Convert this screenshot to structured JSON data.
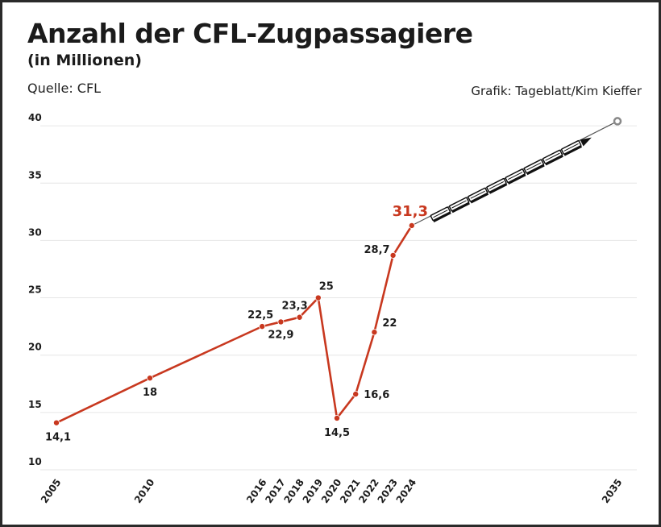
{
  "header": {
    "title": "Anzahl der CFL-Zugpassagiere",
    "subtitle": "(in Millionen)",
    "source": "Quelle: CFL",
    "credit": "Grafik: Tageblatt/Kim Kieffer"
  },
  "colors": {
    "line": "#c8381f",
    "highlight": "#c8381f",
    "grid": "#e6e6e6",
    "text": "#1b1b1b",
    "projection": "#555555"
  },
  "chart_data": {
    "type": "line",
    "title": "Anzahl der CFL-Zugpassagiere",
    "subtitle": "(in Millionen)",
    "xlabel": "",
    "ylabel": "",
    "ylim": [
      10,
      40
    ],
    "yticks": [
      10,
      15,
      20,
      25,
      30,
      35,
      40
    ],
    "grid": true,
    "x": [
      2005,
      2010,
      2016,
      2017,
      2018,
      2019,
      2020,
      2021,
      2022,
      2023,
      2024
    ],
    "values": [
      14.1,
      18,
      22.5,
      22.9,
      23.3,
      25,
      14.5,
      16.6,
      22,
      28.7,
      31.3
    ],
    "labels": [
      "14,1",
      "18",
      "22,5",
      "22,9",
      "23,3",
      "25",
      "14,5",
      "16,6",
      "22",
      "28,7",
      "31,3"
    ],
    "xtick_labels": [
      "2005",
      "2010",
      "2016",
      "2017",
      "2018",
      "2019",
      "2020",
      "2021",
      "2022",
      "2023",
      "2024",
      "2035"
    ],
    "highlight": {
      "x": 2024,
      "value": 31.3,
      "label": "31,3"
    },
    "projection": {
      "from": {
        "x": 2024,
        "value": 31.3
      },
      "to": {
        "x": 2035,
        "value": 40.4
      },
      "icon": "train-icon"
    },
    "annotations": [
      "Quelle: CFL",
      "Grafik: Tageblatt/Kim Kieffer"
    ]
  }
}
